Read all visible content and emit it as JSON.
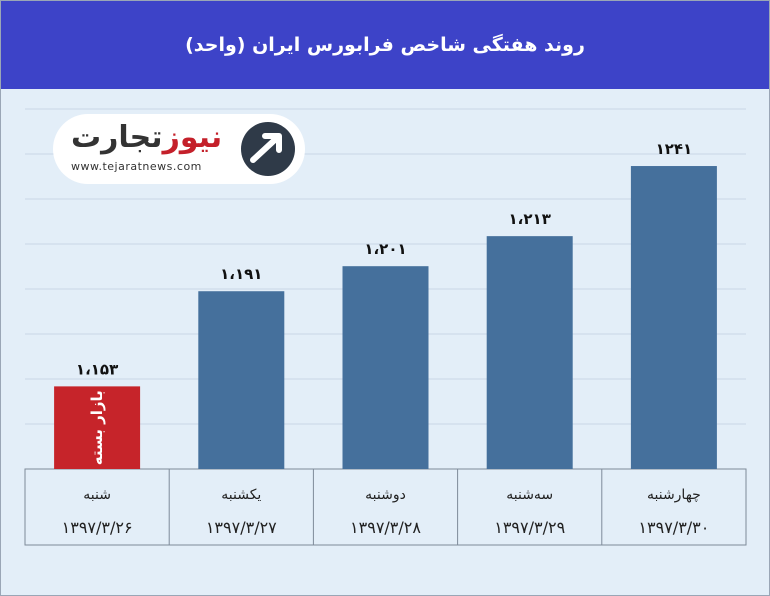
{
  "header": {
    "title": "روند هفتگی شاخص فرابورس ایران (واحد)"
  },
  "logo": {
    "part1": "نیوز",
    "part2": "تجارت",
    "url": "www.tejaratnews.com"
  },
  "chart_data": {
    "type": "bar",
    "title": "روند هفتگی شاخص فرابورس ایران (واحد)",
    "categories": [
      "شنبه",
      "یکشنبه",
      "دوشنبه",
      "سه‌شنبه",
      "چهارشنبه"
    ],
    "dates": [
      "۱۳۹۷/۳/۲۶",
      "۱۳۹۷/۳/۲۷",
      "۱۳۹۷/۳/۲۸",
      "۱۳۹۷/۳/۲۹",
      "۱۳۹۷/۳/۳۰"
    ],
    "values": [
      1153,
      1191,
      1201,
      1213,
      1241
    ],
    "value_labels": [
      "۱،۱۵۳",
      "۱،۱۹۱",
      "۱،۲۰۱",
      "۱،۲۱۳",
      "۱۲۴۱"
    ],
    "bar_annotations": [
      "بازار بسته",
      "",
      "",
      "",
      ""
    ],
    "bar_colors": [
      "#c6242a",
      "#45709c",
      "#45709c",
      "#45709c",
      "#45709c"
    ],
    "grid": true,
    "xlabel": "",
    "ylabel": ""
  },
  "colors": {
    "header": "#3d43c8",
    "bar": "#45709c",
    "closed_bar": "#c6242a",
    "plot_bg": "#e3eef8"
  }
}
